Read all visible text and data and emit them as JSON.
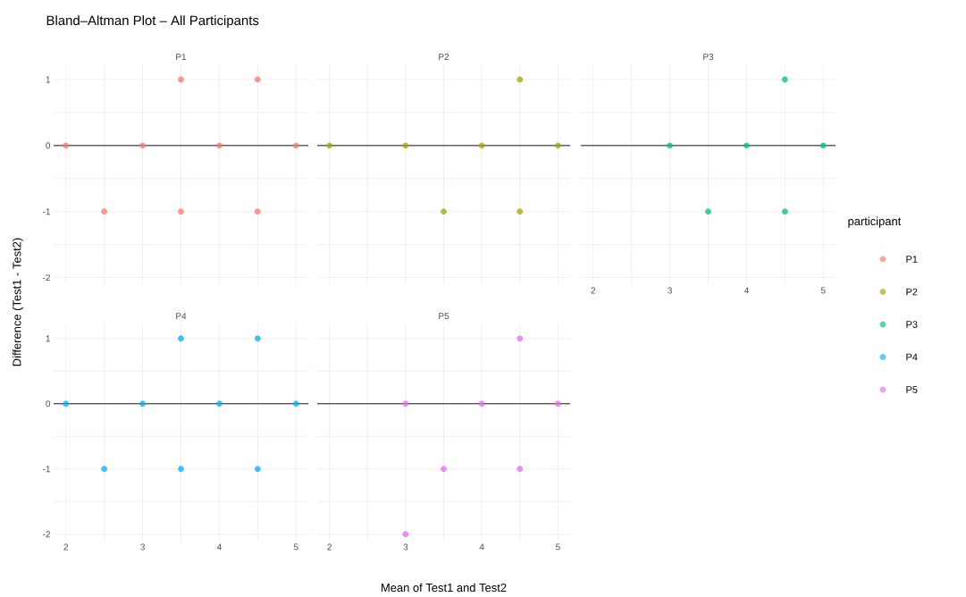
{
  "chart_data": [
    {
      "type": "scatter",
      "title": "Bland–Altman Plot – All Participants",
      "subtitle": "P1",
      "ylabel": "Difference (Test1 - Test2)",
      "xlim": [
        1.84,
        5.16
      ],
      "ylim": [
        -2.1,
        1.23
      ],
      "xticks": [
        2,
        3,
        4,
        5
      ],
      "yticks": [
        -2,
        -1,
        0,
        1
      ],
      "grid": true,
      "marker": "circle",
      "tick_labels": "y",
      "ref_lines": [
        {
          "axis": "y",
          "value": 0,
          "color": "#000000"
        }
      ],
      "series": [
        {
          "name": "P1",
          "color": "#f8766d",
          "x": [
            2,
            2.5,
            3,
            3.5,
            3.5,
            4,
            4.5,
            4.5,
            5
          ],
          "values": [
            0,
            -1,
            0,
            1,
            -1,
            0,
            1,
            -1,
            0
          ]
        }
      ]
    },
    {
      "type": "scatter",
      "subtitle": "P2",
      "xlim": [
        1.84,
        5.16
      ],
      "ylim": [
        -2.1,
        1.23
      ],
      "xticks": [
        2,
        3,
        4,
        5
      ],
      "yticks": [
        -2,
        -1,
        0,
        1
      ],
      "grid": true,
      "marker": "circle",
      "tick_labels": false,
      "ref_lines": [
        {
          "axis": "y",
          "value": 0,
          "color": "#000000"
        }
      ],
      "series": [
        {
          "name": "P2",
          "color": "#a3a500",
          "x": [
            2,
            3,
            3.5,
            4,
            4.5,
            4.5,
            5
          ],
          "values": [
            0,
            0,
            -1,
            0,
            1,
            -1,
            0
          ]
        }
      ]
    },
    {
      "type": "scatter",
      "subtitle": "P3",
      "legend_title": "participant",
      "legend": "right",
      "xlim": [
        1.84,
        5.16
      ],
      "ylim": [
        -2.1,
        1.23
      ],
      "xticks": [
        2,
        3,
        4,
        5
      ],
      "yticks": [
        -2,
        -1,
        0,
        1
      ],
      "grid": true,
      "marker": "circle",
      "tick_labels": "x",
      "ref_lines": [
        {
          "axis": "y",
          "value": 0,
          "color": "#000000"
        }
      ],
      "series": [
        {
          "name": "P3",
          "color": "#00bf7d",
          "x": [
            3,
            3.5,
            4,
            4.5,
            4.5,
            5
          ],
          "values": [
            0,
            -1,
            0,
            1,
            -1,
            0
          ]
        }
      ]
    },
    {
      "type": "scatter",
      "subtitle": "P4",
      "xlim": [
        1.84,
        5.16
      ],
      "ylim": [
        -2.1,
        1.23
      ],
      "xticks": [
        2,
        3,
        4,
        5
      ],
      "yticks": [
        -2,
        -1,
        0,
        1
      ],
      "grid": true,
      "marker": "circle",
      "ref_lines": [
        {
          "axis": "y",
          "value": 0,
          "color": "#000000"
        }
      ],
      "series": [
        {
          "name": "P4",
          "color": "#00b0f6",
          "x": [
            2,
            2.5,
            3,
            3.5,
            3.5,
            4,
            4.5,
            4.5,
            5
          ],
          "values": [
            0,
            -1,
            0,
            1,
            -1,
            0,
            1,
            -1,
            0
          ]
        }
      ]
    },
    {
      "type": "scatter",
      "subtitle": "P5",
      "xlabel": "Mean of Test1 and Test2",
      "xlim": [
        1.84,
        5.16
      ],
      "ylim": [
        -2.1,
        1.23
      ],
      "xticks": [
        2,
        3,
        4,
        5
      ],
      "yticks": [
        -2,
        -1,
        0,
        1
      ],
      "grid": true,
      "marker": "circle",
      "tick_labels": "x",
      "ref_lines": [
        {
          "axis": "y",
          "value": 0,
          "color": "#000000"
        }
      ],
      "series": [
        {
          "name": "P5",
          "color": "#e76bf3",
          "x": [
            3,
            3,
            3.5,
            4,
            4.5,
            4.5,
            5
          ],
          "values": [
            0,
            -2,
            -1,
            0,
            1,
            -1,
            0
          ]
        }
      ]
    }
  ]
}
